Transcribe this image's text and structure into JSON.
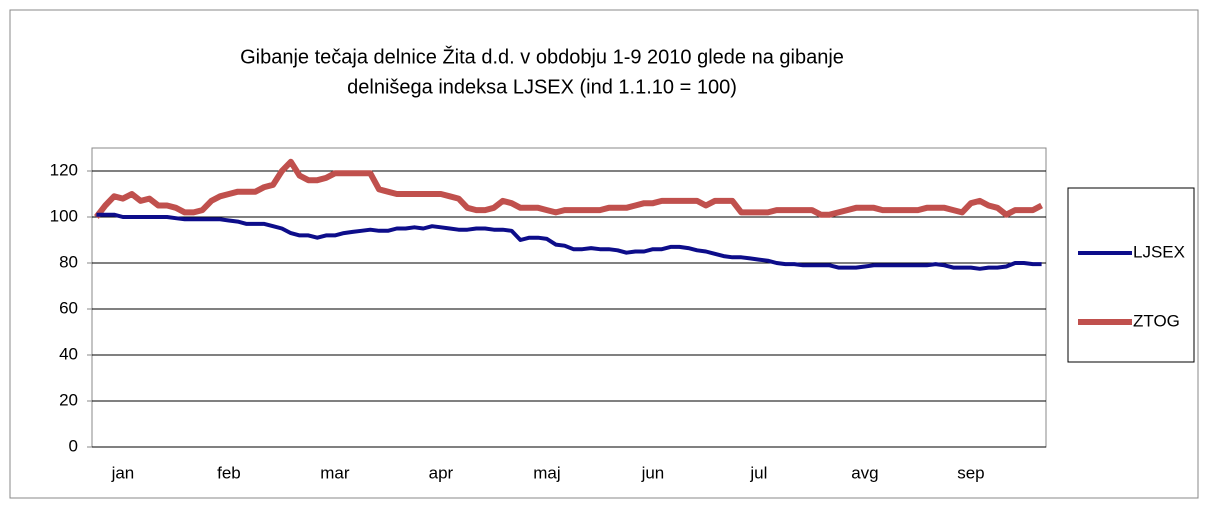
{
  "chart_data": {
    "type": "line",
    "title": [
      "Gibanje tečaja delnice Žita d.d. v obdobju 1-9 2010 glede na gibanje",
      "delnišega indeksa LJSEX (ind 1.1.10 = 100)"
    ],
    "categories": [
      null,
      null,
      null,
      "jan",
      null,
      null,
      null,
      null,
      null,
      null,
      null,
      null,
      null,
      null,
      null,
      "feb",
      null,
      null,
      null,
      null,
      null,
      null,
      null,
      null,
      null,
      null,
      null,
      "mar",
      null,
      null,
      null,
      null,
      null,
      null,
      null,
      null,
      null,
      null,
      null,
      "apr",
      null,
      null,
      null,
      null,
      null,
      null,
      null,
      null,
      null,
      null,
      null,
      "maj",
      null,
      null,
      null,
      null,
      null,
      null,
      null,
      null,
      null,
      null,
      null,
      "jun",
      null,
      null,
      null,
      null,
      null,
      null,
      null,
      null,
      null,
      null,
      null,
      "jul",
      null,
      null,
      null,
      null,
      null,
      null,
      null,
      null,
      null,
      null,
      null,
      "avg",
      null,
      null,
      null,
      null,
      null,
      null,
      null,
      null,
      null,
      null,
      null,
      "sep",
      null,
      null,
      null,
      null,
      null,
      null,
      null,
      null
    ],
    "series": [
      {
        "name": "LJSEX",
        "color": "#0d0d8a",
        "values": [
          101,
          101,
          101,
          100,
          100,
          100,
          100,
          100,
          100,
          99.5,
          99,
          99,
          99,
          99,
          99,
          98.5,
          98,
          97,
          97,
          97,
          96,
          95,
          93,
          92,
          92,
          91,
          92,
          92,
          93,
          93.5,
          94,
          94.5,
          94,
          94,
          95,
          95,
          95.5,
          95,
          96,
          95.5,
          95,
          94.5,
          94.5,
          95,
          95,
          94.5,
          94.5,
          94,
          90,
          91,
          91,
          90.5,
          88,
          87.5,
          86,
          86,
          86.5,
          86,
          86,
          85.5,
          84.5,
          85,
          85,
          86,
          86,
          87,
          87,
          86.5,
          85.5,
          85,
          84,
          83,
          82.5,
          82.5,
          82,
          81.5,
          81,
          80,
          79.5,
          79.5,
          79,
          79,
          79,
          79,
          78,
          78,
          78,
          78.5,
          79,
          79,
          79,
          79,
          79,
          79,
          79,
          79.5,
          79,
          78,
          78,
          78,
          77.5,
          78,
          78,
          78.5,
          80,
          80,
          79.5,
          79.5
        ]
      },
      {
        "name": "ZTOG",
        "color": "#c0504d",
        "values": [
          100,
          105,
          109,
          108,
          110,
          107,
          108,
          105,
          105,
          104,
          102,
          102,
          103,
          107,
          109,
          110,
          111,
          111,
          111,
          113,
          114,
          120,
          124,
          118,
          116,
          116,
          117,
          119,
          119,
          119,
          119,
          119,
          112,
          111,
          110,
          110,
          110,
          110,
          110,
          110,
          109,
          108,
          104,
          103,
          103,
          104,
          107,
          106,
          104,
          104,
          104,
          103,
          102,
          103,
          103,
          103,
          103,
          103,
          104,
          104,
          104,
          105,
          106,
          106,
          107,
          107,
          107,
          107,
          107,
          105,
          107,
          107,
          107,
          102,
          102,
          102,
          102,
          103,
          103,
          103,
          103,
          103,
          101,
          101,
          102,
          103,
          104,
          104,
          104,
          103,
          103,
          103,
          103,
          103,
          104,
          104,
          104,
          103,
          102,
          106,
          107,
          105,
          104,
          101,
          103,
          103,
          103,
          105
        ]
      }
    ],
    "ylim": [
      0,
      130
    ],
    "yticks": [
      0,
      20,
      40,
      60,
      80,
      100,
      120
    ],
    "grid": true
  }
}
